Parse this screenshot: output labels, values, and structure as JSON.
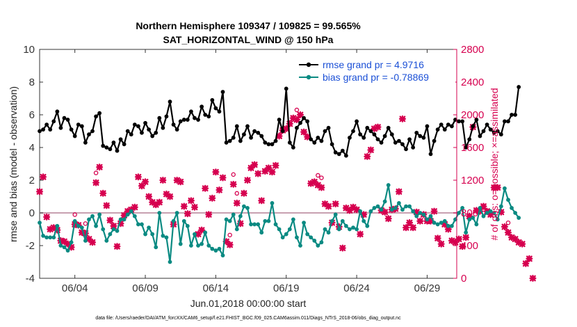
{
  "chart_data": {
    "type": "line",
    "title": "Northern Hemisphere 109347 / 109825 = 99.565%",
    "subtitle": "SAT_HORIZONTAL_WIND @ 150 hPa",
    "xlabel": "Jun.01,2018 00:00:00 start",
    "ylabel": "rmse and bias (model - observation)",
    "ylabel_right": "# of obs: o=possible; ×=assimilated",
    "footnote": "data file: /Users/raeder/DAI/ATM_forcXX/CAM6_setup/f.e21.FHIST_BGC.f09_025.CAM6assim.011/Diags_NTrS_2018-06/obs_diag_output.nc",
    "xlim": [
      1.5,
      31.1
    ],
    "ylim": [
      -4,
      10
    ],
    "ylim_right": [
      0,
      2800
    ],
    "x_ticks": [
      4,
      9,
      14,
      19,
      24,
      29
    ],
    "x_tick_labels": [
      "06/04",
      "06/09",
      "06/14",
      "06/19",
      "06/24",
      "06/29"
    ],
    "y_ticks": [
      -4,
      -2,
      0,
      2,
      4,
      6,
      8,
      10
    ],
    "y_tick_labels": [
      "-4",
      "-2",
      "0",
      "2",
      "4",
      "6",
      "8",
      "10"
    ],
    "y_ticks_right": [
      0,
      400,
      800,
      1200,
      1600,
      2000,
      2400,
      2800
    ],
    "y_tick_labels_right": [
      "0",
      "400",
      "800",
      "1200",
      "1600",
      "2000",
      "2400",
      "2800"
    ],
    "legend": [
      "rmse grand pr = 4.9716",
      "bias grand pr = -0.78869"
    ],
    "legend_position": "top-right",
    "colors": {
      "rmse": "#000000",
      "bias": "#0a8a82",
      "obs": "#d6004f",
      "zero": "#c8a0b0",
      "axis": "#333333"
    },
    "x_start": 1.5,
    "x_step": 0.25,
    "series": [
      {
        "name": "rmse",
        "axis": "left",
        "values": [
          5.0,
          5.1,
          5.4,
          5.1,
          5.6,
          6.2,
          5.2,
          5.8,
          5.7,
          5.1,
          4.7,
          5.4,
          5.3,
          4.3,
          4.8,
          5.0,
          5.9,
          6.1,
          4.1,
          4.0,
          3.9,
          4.3,
          3.8,
          4.5,
          4.2,
          5.0,
          4.8,
          5.4,
          5.3,
          4.9,
          5.5,
          5.1,
          4.7,
          4.9,
          5.8,
          5.2,
          5.9,
          6.8,
          5.4,
          5.1,
          5.6,
          5.7,
          5.7,
          6.2,
          5.8,
          5.7,
          6.5,
          6.0,
          5.9,
          6.9,
          6.4,
          6.2,
          7.4,
          4.3,
          4.4,
          4.6,
          5.3,
          4.4,
          4.8,
          5.3,
          4.6,
          5.0,
          4.9,
          4.7,
          4.3,
          4.2,
          4.2,
          4.4,
          5.7,
          5.0,
          7.6,
          4.3,
          4.0,
          5.2,
          5.5,
          5.8,
          5.6,
          4.5,
          4.3,
          4.6,
          4.4,
          5.0,
          5.2,
          4.2,
          3.7,
          3.6,
          3.8,
          3.5,
          4.6,
          5.0,
          5.6,
          4.8,
          4.6,
          5.2,
          5.0,
          4.8,
          4.5,
          4.3,
          4.7,
          5.2,
          4.8,
          4.3,
          4.4,
          4.2,
          3.9,
          4.5,
          4.0,
          4.9,
          4.7,
          4.6,
          5.3,
          3.6,
          4.4,
          5.1,
          5.4,
          5.1,
          5.4,
          5.3,
          5.7,
          5.6,
          5.6,
          4.0,
          4.5,
          5.3,
          5.7,
          4.7,
          5.0,
          5.4,
          5.1,
          4.9,
          5.0,
          4.8,
          5.6,
          5.6,
          6.0,
          6.0,
          7.7
        ]
      },
      {
        "name": "bias",
        "axis": "left",
        "values": [
          -0.6,
          -1.4,
          -1.5,
          -1.5,
          -1.5,
          -0.8,
          -2.0,
          -2.1,
          -2.3,
          -1.8,
          -0.5,
          -0.8,
          -0.9,
          -1.7,
          -0.4,
          -0.2,
          -0.8,
          -0.1,
          -1.0,
          -1.7,
          -1.3,
          -1.0,
          -1.1,
          -0.4,
          -0.4,
          -0.1,
          0.1,
          -0.2,
          -0.7,
          -0.7,
          -1.3,
          -0.9,
          -1.3,
          -2.1,
          0.0,
          -1.4,
          -1.5,
          -3.0,
          -0.5,
          0.0,
          -1.9,
          -0.5,
          -0.8,
          -2.0,
          -1.3,
          -2.0,
          -1.9,
          -1.2,
          -2.0,
          -2.2,
          -2.3,
          -2.2,
          -2.6,
          -0.4,
          -0.5,
          -0.1,
          -1.0,
          -0.2,
          0.4,
          0.3,
          -0.7,
          -0.7,
          -0.7,
          -1.2,
          -0.5,
          -0.5,
          0.6,
          -0.7,
          -1.0,
          -1.5,
          -1.3,
          -1.0,
          -0.4,
          -1.5,
          -2.0,
          -0.6,
          -1.3,
          -1.5,
          -1.7,
          -2.0,
          -1.8,
          -1.0,
          -1.2,
          -0.5,
          -0.1,
          -1.0,
          -0.5,
          -0.8,
          -1.0,
          -0.9,
          -1.0,
          0.1,
          -0.5,
          -0.8,
          0.1,
          0.3,
          0.4,
          0.2,
          0.7,
          1.7,
          0.2,
          0.3,
          0.6,
          0.2,
          0.4,
          0.4,
          0.1,
          -0.2,
          0.0,
          -0.1,
          -0.4,
          -0.2,
          -0.6,
          -0.7,
          -0.6,
          -0.5,
          -0.8,
          -0.8,
          -0.4,
          0.0,
          0.3,
          -1.2,
          -0.4,
          -0.3,
          -0.7,
          0.3,
          -0.2,
          0.0,
          0.1,
          0.0,
          -0.4,
          0.4,
          1.5,
          0.8,
          0.3,
          0.0,
          -0.3
        ]
      },
      {
        "name": "obs_assimilated",
        "axis": "right",
        "values": [
          1060,
          1240,
          750,
          600,
          620,
          590,
          460,
          450,
          420,
          380,
          660,
          650,
          560,
          550,
          480,
          440,
          1170,
          1360,
          1040,
          890,
          710,
          640,
          390,
          670,
          770,
          820,
          840,
          870,
          1240,
          1130,
          1180,
          1000,
          930,
          900,
          930,
          1200,
          1030,
          1000,
          660,
          1200,
          1180,
          880,
          790,
          950,
          870,
          540,
          590,
          1100,
          780,
          980,
          1300,
          1080,
          1230,
          450,
          410,
          1150,
          920,
          670,
          1040,
          1200,
          1350,
          1390,
          1280,
          950,
          1310,
          1350,
          1300,
          1380,
          1740,
          1810,
          1830,
          1890,
          1960,
          1940,
          2000,
          1790,
          1730,
          1160,
          1180,
          1140,
          1110,
          910,
          880,
          680,
          910,
          630,
          370,
          860,
          830,
          870,
          840,
          540,
          780,
          1490,
          1570,
          1830,
          1850,
          830,
          810,
          730,
          840,
          850,
          1060,
          1950,
          620,
          680,
          620,
          810,
          700,
          780,
          700,
          700,
          820,
          490,
          420,
          660,
          600,
          460,
          440,
          480,
          390,
          500,
          760,
          1850,
          830,
          820,
          880,
          820,
          780,
          1110,
          1110,
          810,
          630,
          560,
          500,
          480,
          440,
          420,
          180,
          240,
          0
        ]
      },
      {
        "name": "obs_possible",
        "axis": "right",
        "count": 10
      }
    ]
  }
}
